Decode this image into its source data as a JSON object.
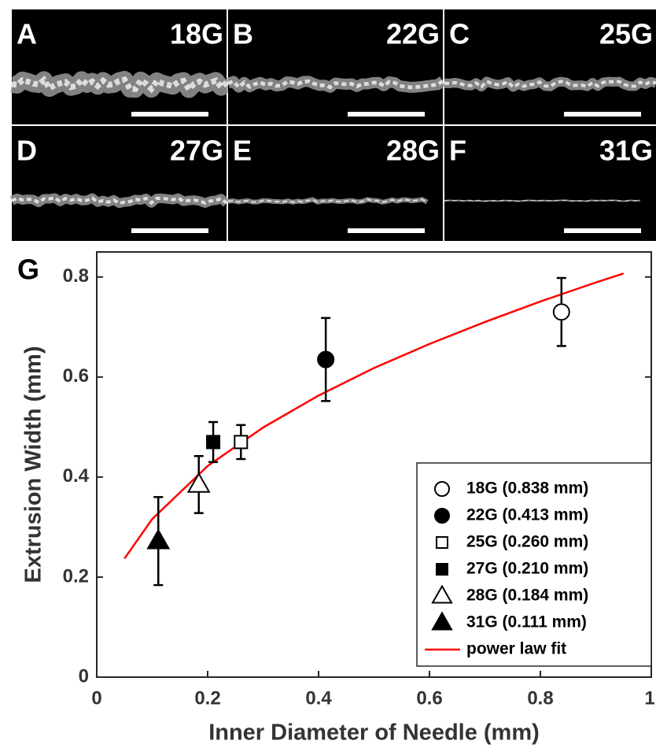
{
  "panels": [
    {
      "label": "A",
      "gauge": "18G"
    },
    {
      "label": "B",
      "gauge": "22G"
    },
    {
      "label": "C",
      "gauge": "25G"
    },
    {
      "label": "D",
      "gauge": "27G"
    },
    {
      "label": "E",
      "gauge": "28G"
    },
    {
      "label": "F",
      "gauge": "31G"
    }
  ],
  "chart_data": {
    "type": "scatter",
    "panel_label": "G",
    "x_label": "Inner Diameter of Needle (mm)",
    "y_label": "Extrusion Width (mm)",
    "xlim": [
      0,
      1
    ],
    "ylim": [
      0,
      0.85
    ],
    "xticks": [
      0,
      0.2,
      0.4,
      0.6,
      0.8,
      1
    ],
    "yticks": [
      0,
      0.2,
      0.4,
      0.6,
      0.8
    ],
    "series": [
      {
        "name": "18G (0.838 mm)",
        "marker": "circle",
        "filled": false,
        "color": "#000000",
        "x": [
          0.838
        ],
        "values": [
          0.73
        ],
        "errors": [
          0.068
        ]
      },
      {
        "name": "22G (0.413 mm)",
        "marker": "circle",
        "filled": true,
        "color": "#000000",
        "x": [
          0.413
        ],
        "values": [
          0.635
        ],
        "errors": [
          0.083
        ]
      },
      {
        "name": "25G (0.260 mm)",
        "marker": "square",
        "filled": false,
        "color": "#000000",
        "x": [
          0.26
        ],
        "values": [
          0.47
        ],
        "errors": [
          0.034
        ]
      },
      {
        "name": "27G (0.210 mm)",
        "marker": "square",
        "filled": true,
        "color": "#000000",
        "x": [
          0.21
        ],
        "values": [
          0.47
        ],
        "errors": [
          0.04
        ]
      },
      {
        "name": "28G (0.184 mm)",
        "marker": "triangle",
        "filled": false,
        "color": "#000000",
        "x": [
          0.184
        ],
        "values": [
          0.385
        ],
        "errors": [
          0.057
        ]
      },
      {
        "name": "31G (0.111 mm)",
        "marker": "triangle",
        "filled": true,
        "color": "#000000",
        "x": [
          0.111
        ],
        "values": [
          0.272
        ],
        "errors": [
          0.088
        ]
      }
    ],
    "fit": {
      "name": "power law fit",
      "color": "#ff0000",
      "x": [
        0.05,
        0.1,
        0.2,
        0.3,
        0.4,
        0.5,
        0.6,
        0.7,
        0.8,
        0.9,
        0.95
      ],
      "values": [
        0.237,
        0.316,
        0.422,
        0.499,
        0.563,
        0.618,
        0.666,
        0.71,
        0.751,
        0.789,
        0.807
      ]
    }
  }
}
